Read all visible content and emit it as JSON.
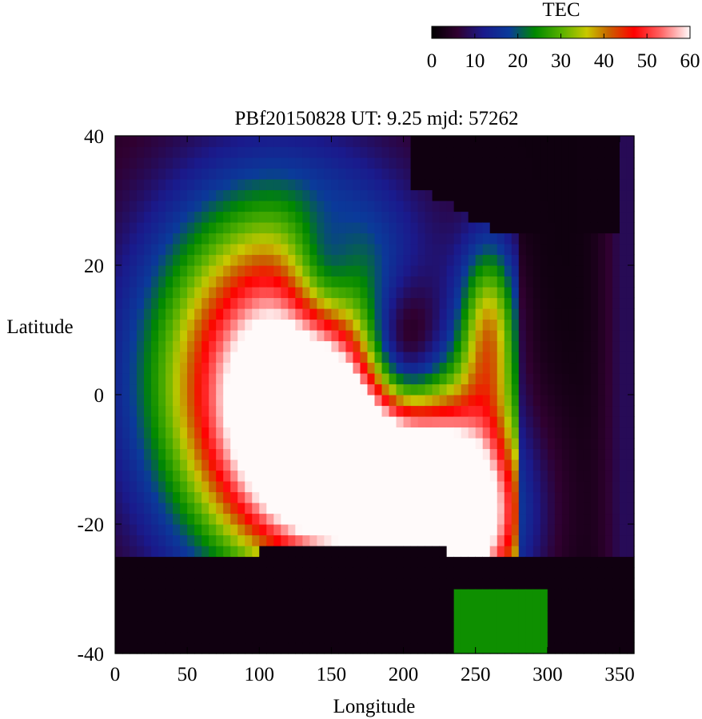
{
  "chart_data": {
    "type": "heatmap",
    "title": "PBf20150828  UT: 9.25  mjd: 57262",
    "xlabel": "Longitude",
    "ylabel": "Latitude",
    "xlim": [
      0,
      360
    ],
    "ylim": [
      -40,
      40
    ],
    "x_ticks": [
      0,
      50,
      100,
      150,
      200,
      250,
      300,
      350
    ],
    "y_ticks": [
      -40,
      -20,
      0,
      20,
      40
    ],
    "colorbar": {
      "label": "TEC",
      "range": [
        0,
        60
      ],
      "ticks": [
        0,
        10,
        20,
        30,
        40,
        50,
        60
      ],
      "stops": [
        {
          "v": 0,
          "color": "#000000"
        },
        {
          "v": 6,
          "color": "#300030"
        },
        {
          "v": 12,
          "color": "#1a1a8c"
        },
        {
          "v": 18,
          "color": "#0a3a9a"
        },
        {
          "v": 24,
          "color": "#008800"
        },
        {
          "v": 30,
          "color": "#55b000"
        },
        {
          "v": 36,
          "color": "#c8c800"
        },
        {
          "v": 41,
          "color": "#c86400"
        },
        {
          "v": 47,
          "color": "#ff0000"
        },
        {
          "v": 53,
          "color": "#ff6060"
        },
        {
          "v": 60,
          "color": "#fffafa"
        }
      ]
    },
    "grid": false
  }
}
